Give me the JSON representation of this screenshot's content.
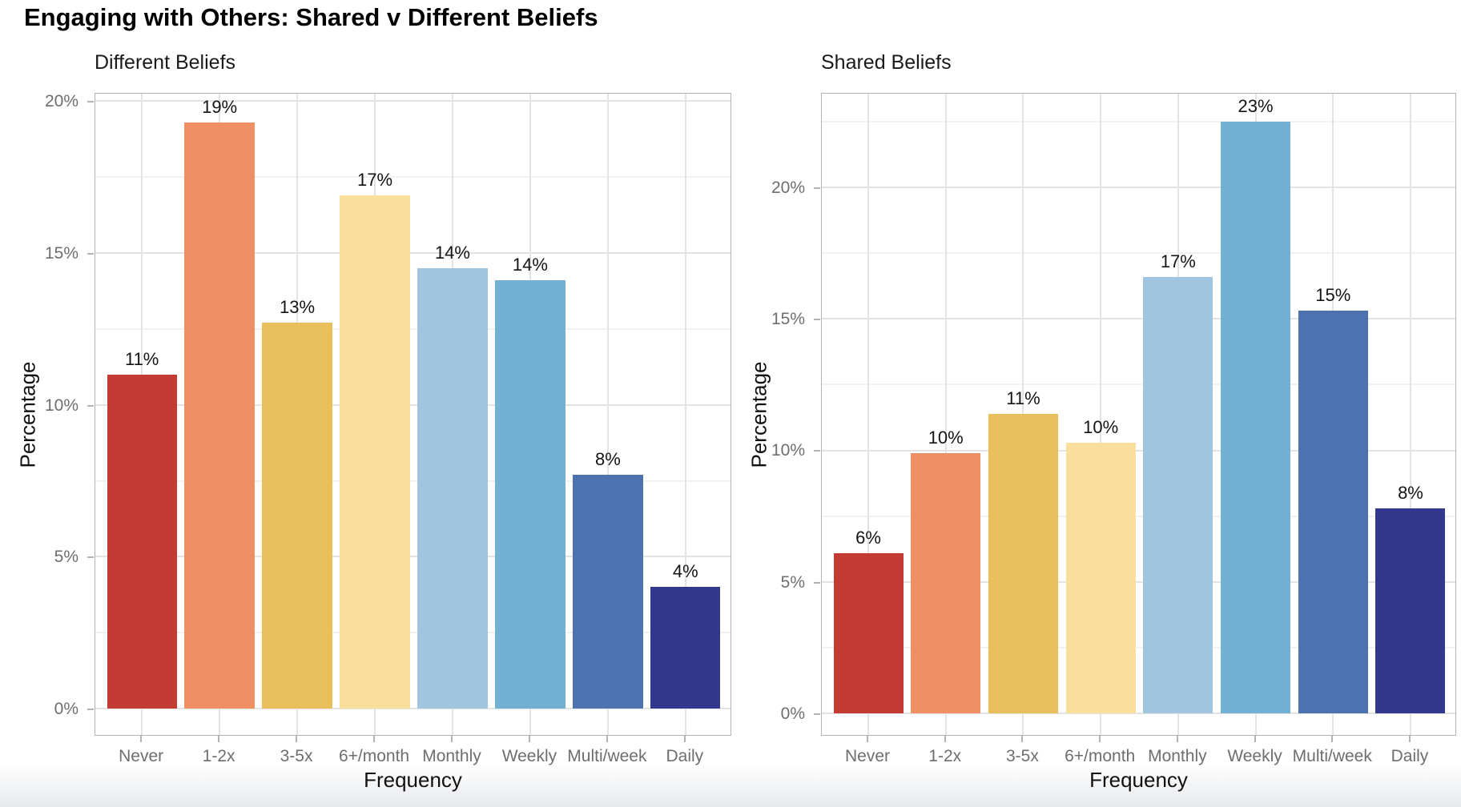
{
  "figure": {
    "title": "Engaging with Others: Shared v Different Beliefs"
  },
  "style": {
    "background": "#ffffff",
    "page_fade_bottom": "#e8eaed",
    "grid_major": "#e3e3e3",
    "grid_minor": "#f1f1f1",
    "panel_border": "#b3b3b3",
    "tick_mark_color": "#b3b3b3",
    "tick_label_color": "#6e6e6e",
    "text_color": "#111111"
  },
  "chart_data": [
    {
      "type": "bar",
      "title": "Different Beliefs",
      "xlabel": "Frequency",
      "ylabel": "Percentage",
      "categories": [
        "Never",
        "1-2x",
        "3-5x",
        "6+/month",
        "Monthly",
        "Weekly",
        "Multi/week",
        "Daily"
      ],
      "values": [
        11.0,
        19.3,
        12.7,
        16.9,
        14.5,
        14.1,
        7.7,
        4.0
      ],
      "bar_labels": [
        "11%",
        "19%",
        "13%",
        "17%",
        "14%",
        "14%",
        "8%",
        "4%"
      ],
      "bar_colors": [
        "#c33b32",
        "#ee8f64",
        "#e8bf5a",
        "#fade9c",
        "#a1c5df",
        "#72b1d4",
        "#4c72af",
        "#32388d"
      ],
      "y_ticks": [
        {
          "value": 0,
          "label": "0%"
        },
        {
          "value": 5,
          "label": "5%"
        },
        {
          "value": 10,
          "label": "10%"
        },
        {
          "value": 15,
          "label": "15%"
        },
        {
          "value": 20,
          "label": "20%"
        }
      ],
      "y_minor": [
        2.5,
        7.5,
        12.5,
        17.5
      ],
      "ylim": [
        -0.87,
        20.3
      ],
      "grid": true,
      "legend_position": "none"
    },
    {
      "type": "bar",
      "title": "Shared Beliefs",
      "xlabel": "Frequency",
      "ylabel": "Percentage",
      "categories": [
        "Never",
        "1-2x",
        "3-5x",
        "6+/month",
        "Monthly",
        "Weekly",
        "Multi/week",
        "Daily"
      ],
      "values": [
        6.1,
        9.9,
        11.4,
        10.3,
        16.6,
        22.5,
        15.3,
        7.8
      ],
      "bar_labels": [
        "6%",
        "10%",
        "11%",
        "10%",
        "17%",
        "23%",
        "15%",
        "8%"
      ],
      "bar_colors": [
        "#c33b32",
        "#ee8f64",
        "#e8bf5a",
        "#fade9c",
        "#a1c5df",
        "#72b1d4",
        "#4c72af",
        "#32388d"
      ],
      "y_ticks": [
        {
          "value": 0,
          "label": "0%"
        },
        {
          "value": 5,
          "label": "5%"
        },
        {
          "value": 10,
          "label": "10%"
        },
        {
          "value": 15,
          "label": "15%"
        },
        {
          "value": 20,
          "label": "20%"
        }
      ],
      "y_minor": [
        2.5,
        7.5,
        12.5,
        17.5,
        22.5
      ],
      "ylim": [
        -0.82,
        23.62
      ],
      "grid": true,
      "legend_position": "none"
    }
  ]
}
